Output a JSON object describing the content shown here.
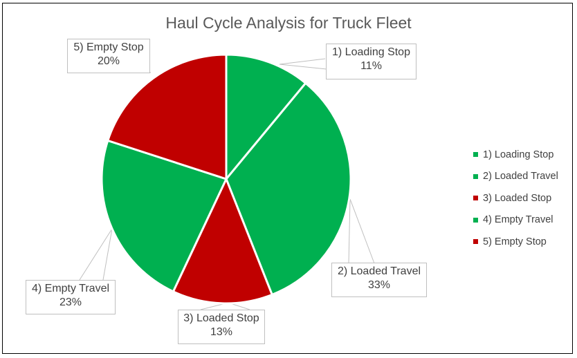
{
  "chart_data": {
    "type": "pie",
    "title": "Haul Cycle Analysis for Truck Fleet",
    "categories": [
      "1) Loading Stop",
      "2) Loaded Travel",
      "3) Loaded Stop",
      "4) Empty Travel",
      "5) Empty Stop"
    ],
    "values": [
      11,
      33,
      13,
      23,
      20
    ],
    "value_labels": [
      "11%",
      "33%",
      "13%",
      "23%",
      "20%"
    ],
    "colors": [
      "#00B050",
      "#00B050",
      "#C00000",
      "#00B050",
      "#C00000"
    ],
    "start_angle": "12 o'clock, clockwise",
    "legend_position": "right"
  },
  "labels": [
    {
      "name": "1) Loading Stop",
      "pct": "11%"
    },
    {
      "name": "2) Loaded Travel",
      "pct": "33%"
    },
    {
      "name": "3) Loaded Stop",
      "pct": "13%"
    },
    {
      "name": "4) Empty Travel",
      "pct": "23%"
    },
    {
      "name": "5) Empty Stop",
      "pct": "20%"
    }
  ]
}
